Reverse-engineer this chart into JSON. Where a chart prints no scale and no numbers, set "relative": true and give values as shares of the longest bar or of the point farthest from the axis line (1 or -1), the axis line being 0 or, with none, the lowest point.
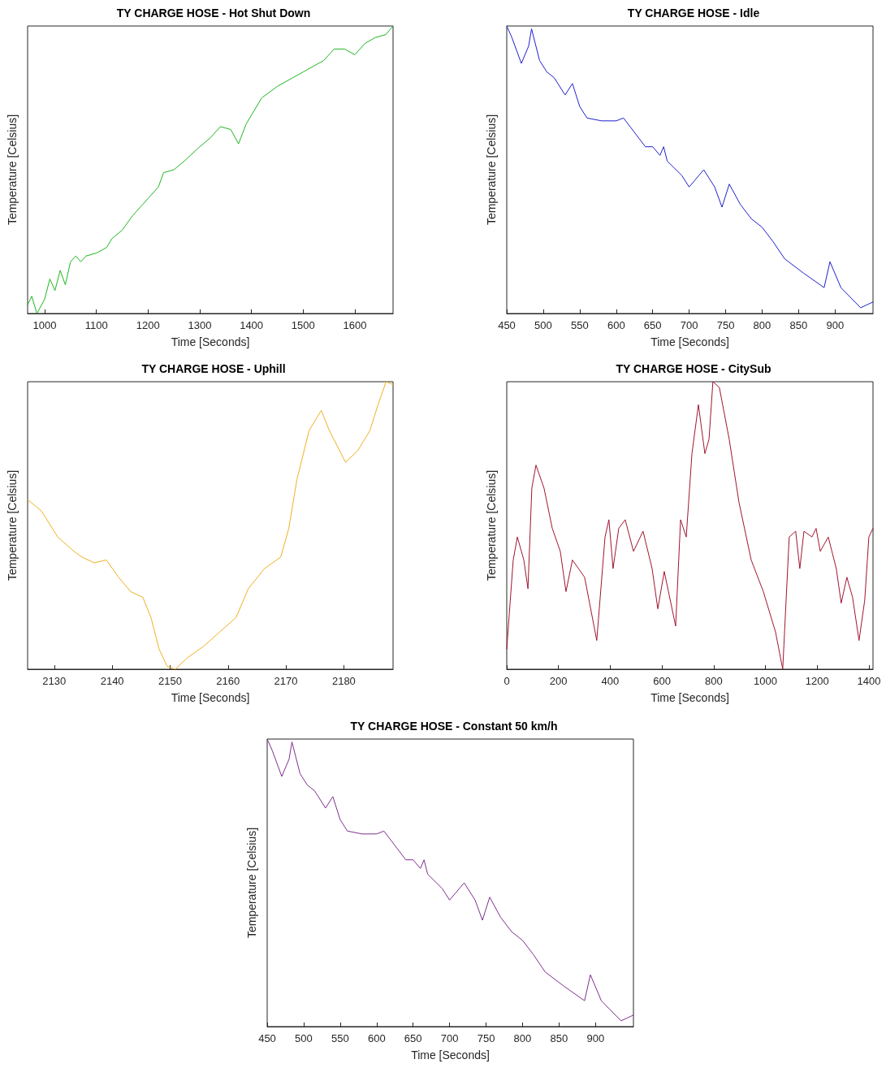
{
  "chart_data": [
    {
      "type": "line",
      "title": "TY CHARGE HOSE - Hot Shut Down",
      "xlabel": "Time [Seconds]",
      "ylabel": "Temperature [Celsius]",
      "relative": true,
      "grid": false,
      "xlim": [
        967,
        1674
      ],
      "xticks": [
        1000,
        1100,
        1200,
        1300,
        1400,
        1500,
        1600
      ],
      "series": [
        {
          "color": "#1fb51f",
          "x": [
            967,
            975,
            985,
            1000,
            1010,
            1020,
            1030,
            1040,
            1050,
            1060,
            1070,
            1080,
            1100,
            1120,
            1130,
            1150,
            1170,
            1190,
            1200,
            1220,
            1230,
            1250,
            1270,
            1300,
            1320,
            1340,
            1360,
            1375,
            1390,
            1400,
            1420,
            1450,
            1480,
            1500,
            1520,
            1540,
            1560,
            1580,
            1600,
            1620,
            1640,
            1660,
            1674
          ],
          "values": [
            0.03,
            0.06,
            0.0,
            0.05,
            0.12,
            0.08,
            0.15,
            0.1,
            0.18,
            0.2,
            0.18,
            0.2,
            0.21,
            0.23,
            0.26,
            0.29,
            0.34,
            0.38,
            0.4,
            0.44,
            0.49,
            0.5,
            0.53,
            0.58,
            0.61,
            0.65,
            0.64,
            0.59,
            0.66,
            0.69,
            0.75,
            0.79,
            0.82,
            0.84,
            0.86,
            0.88,
            0.92,
            0.92,
            0.9,
            0.94,
            0.96,
            0.97,
            1.0
          ]
        }
      ]
    },
    {
      "type": "line",
      "title": "TY CHARGE HOSE - Idle",
      "xlabel": "Time [Seconds]",
      "ylabel": "Temperature [Celsius]",
      "relative": true,
      "grid": false,
      "xlim": [
        450,
        952
      ],
      "xticks": [
        450,
        500,
        550,
        600,
        650,
        700,
        750,
        800,
        850,
        900
      ],
      "series": [
        {
          "color": "#1f1fcf",
          "x": [
            450,
            457,
            470,
            480,
            484,
            495,
            505,
            515,
            530,
            540,
            550,
            560,
            580,
            600,
            610,
            625,
            640,
            650,
            660,
            665,
            670,
            690,
            700,
            720,
            735,
            745,
            755,
            770,
            785,
            800,
            815,
            831,
            857,
            885,
            893,
            908,
            935,
            952
          ],
          "values": [
            1.0,
            0.96,
            0.87,
            0.93,
            0.99,
            0.88,
            0.84,
            0.82,
            0.76,
            0.8,
            0.72,
            0.68,
            0.67,
            0.67,
            0.68,
            0.63,
            0.58,
            0.58,
            0.55,
            0.58,
            0.53,
            0.48,
            0.44,
            0.5,
            0.44,
            0.37,
            0.45,
            0.38,
            0.33,
            0.3,
            0.25,
            0.19,
            0.14,
            0.09,
            0.18,
            0.09,
            0.02,
            0.04
          ]
        }
      ]
    },
    {
      "type": "line",
      "title": "TY CHARGE HOSE - Uphill",
      "xlabel": "Time [Seconds]",
      "ylabel": "Temperature [Celsius]",
      "relative": true,
      "grid": false,
      "xlim": [
        2125.4,
        2188.5
      ],
      "xticks": [
        2130,
        2140,
        2150,
        2160,
        2170,
        2180
      ],
      "series": [
        {
          "color": "#edb120",
          "x": [
            2125.4,
            2127.8,
            2130.6,
            2133.4,
            2134.8,
            2136.9,
            2139,
            2141.1,
            2143.2,
            2145.3,
            2146.7,
            2148.1,
            2149.5,
            2150.9,
            2153,
            2155.8,
            2158.6,
            2161.4,
            2163.5,
            2166.3,
            2169.1,
            2170.5,
            2171.9,
            2174,
            2176.1,
            2177.5,
            2180.3,
            2182.4,
            2184.5,
            2185.9,
            2187.3,
            2188.5
          ],
          "values": [
            0.59,
            0.55,
            0.46,
            0.41,
            0.39,
            0.37,
            0.38,
            0.32,
            0.27,
            0.25,
            0.18,
            0.07,
            0.01,
            0,
            0.04,
            0.08,
            0.13,
            0.18,
            0.28,
            0.35,
            0.39,
            0.49,
            0.66,
            0.83,
            0.9,
            0.83,
            0.72,
            0.76,
            0.83,
            0.92,
            1.0,
            0.99
          ]
        }
      ]
    },
    {
      "type": "line",
      "title": "TY CHARGE HOSE - CitySub",
      "xlabel": "Time [Seconds]",
      "ylabel": "Temperature [Celsius]",
      "relative": true,
      "grid": false,
      "xlim": [
        0,
        1416
      ],
      "xticks": [
        0,
        200,
        400,
        600,
        800,
        1000,
        1200,
        1400
      ],
      "series": [
        {
          "color": "#a2142f",
          "x": [
            0,
            25,
            41,
            66,
            82,
            97,
            113,
            144,
            176,
            207,
            229,
            254,
            301,
            348,
            380,
            395,
            411,
            433,
            458,
            490,
            527,
            562,
            584,
            609,
            653,
            672,
            694,
            716,
            741,
            766,
            782,
            797,
            822,
            860,
            898,
            945,
            992,
            1039,
            1067,
            1092,
            1117,
            1133,
            1149,
            1180,
            1196,
            1212,
            1243,
            1274,
            1293,
            1315,
            1337,
            1362,
            1384,
            1400,
            1416
          ],
          "values": [
            0.07,
            0.38,
            0.46,
            0.38,
            0.28,
            0.63,
            0.71,
            0.63,
            0.49,
            0.41,
            0.27,
            0.38,
            0.32,
            0.1,
            0.46,
            0.52,
            0.35,
            0.49,
            0.52,
            0.41,
            0.48,
            0.35,
            0.21,
            0.34,
            0.15,
            0.52,
            0.46,
            0.75,
            0.92,
            0.75,
            0.8,
            1.0,
            0.98,
            0.8,
            0.58,
            0.38,
            0.27,
            0.13,
            0,
            0.46,
            0.48,
            0.35,
            0.48,
            0.46,
            0.49,
            0.41,
            0.46,
            0.35,
            0.23,
            0.32,
            0.25,
            0.1,
            0.24,
            0.46,
            0.49
          ]
        }
      ]
    },
    {
      "type": "line",
      "title": "TY CHARGE HOSE - Constant 50 km/h",
      "xlabel": "Time [Seconds]",
      "ylabel": "Temperature [Celsius]",
      "relative": true,
      "grid": false,
      "xlim": [
        450,
        952
      ],
      "xticks": [
        450,
        500,
        550,
        600,
        650,
        700,
        750,
        800,
        850,
        900
      ],
      "series": [
        {
          "color": "#7e2f8e",
          "x": [
            450,
            457,
            470,
            480,
            484,
            495,
            505,
            515,
            530,
            540,
            550,
            560,
            580,
            600,
            610,
            625,
            640,
            650,
            660,
            665,
            670,
            690,
            700,
            720,
            735,
            745,
            755,
            770,
            785,
            800,
            815,
            831,
            857,
            885,
            893,
            908,
            935,
            952
          ],
          "values": [
            1.0,
            0.96,
            0.87,
            0.93,
            0.99,
            0.88,
            0.84,
            0.82,
            0.76,
            0.8,
            0.72,
            0.68,
            0.67,
            0.67,
            0.68,
            0.63,
            0.58,
            0.58,
            0.55,
            0.58,
            0.53,
            0.48,
            0.44,
            0.5,
            0.44,
            0.37,
            0.45,
            0.38,
            0.33,
            0.3,
            0.25,
            0.19,
            0.14,
            0.09,
            0.18,
            0.09,
            0.02,
            0.04
          ]
        }
      ]
    }
  ]
}
